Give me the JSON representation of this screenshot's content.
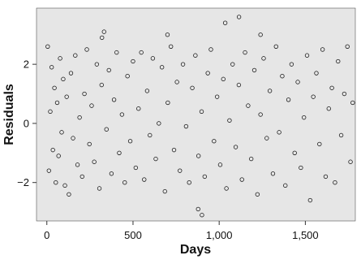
{
  "chart_data": {
    "type": "scatter",
    "title": "",
    "xlabel": "Days",
    "ylabel": "Residuals",
    "xlim": [
      -60,
      1790
    ],
    "ylim": [
      -3.3,
      3.9
    ],
    "xticks": [
      0,
      500,
      1000,
      1500
    ],
    "xtick_labels": [
      "0",
      "500",
      "1,000",
      "1,500"
    ],
    "yticks": [
      -2,
      0,
      2
    ],
    "ytick_labels": [
      "−2",
      "0",
      "2"
    ],
    "grid": false,
    "legend": "none",
    "colors": {
      "background": "#e6e6e6",
      "marker": "#111111"
    },
    "series": [
      {
        "x": [
          5,
          12,
          20,
          28,
          35,
          44,
          52,
          60,
          68,
          77,
          86,
          95,
          105,
          115,
          128,
          140,
          152,
          165,
          178,
          190,
          205,
          218,
          232,
          247,
          260,
          275,
          290,
          305,
          318,
          332,
          346,
          360,
          375,
          390,
          405,
          420,
          436,
          452,
          468,
          484,
          500,
          516,
          532,
          548,
          565,
          582,
          598,
          615,
          632,
          650,
          668,
          685,
          702,
          720,
          738,
          755,
          772,
          790,
          808,
          826,
          844,
          862,
          880,
          898,
          916,
          934,
          952,
          970,
          988,
          1006,
          1024,
          1042,
          1060,
          1078,
          1096,
          1114,
          1132,
          1150,
          1168,
          1186,
          1204,
          1222,
          1240,
          1258,
          1276,
          1294,
          1312,
          1330,
          1348,
          1366,
          1384,
          1402,
          1420,
          1438,
          1456,
          1474,
          1492,
          1510,
          1528,
          1546,
          1564,
          1582,
          1600,
          1618,
          1636,
          1654,
          1672,
          1690,
          1708,
          1726,
          1744,
          1762,
          1775,
          320,
          700,
          878,
          900,
          1035,
          1115,
          1240
        ],
        "y": [
          2.6,
          -1.6,
          0.4,
          1.9,
          -0.9,
          1.2,
          -2.0,
          0.7,
          -1.1,
          2.2,
          -0.3,
          1.5,
          -2.1,
          0.9,
          -2.4,
          1.7,
          -0.5,
          2.3,
          -1.4,
          0.2,
          -1.8,
          1.0,
          2.5,
          -0.7,
          0.6,
          -1.3,
          2.0,
          -2.2,
          1.3,
          3.1,
          -0.2,
          1.8,
          -1.7,
          0.8,
          2.4,
          -1.0,
          0.3,
          -2.0,
          1.6,
          -0.6,
          2.1,
          -1.5,
          0.5,
          2.4,
          -1.9,
          1.1,
          -0.4,
          2.2,
          -1.2,
          0.0,
          1.9,
          -2.3,
          0.7,
          2.6,
          -0.9,
          1.4,
          -1.6,
          2.0,
          -0.1,
          -2.0,
          1.2,
          2.3,
          -1.1,
          0.4,
          -1.8,
          1.7,
          2.5,
          -0.6,
          0.9,
          -1.4,
          1.5,
          -2.2,
          0.1,
          2.0,
          -0.8,
          1.3,
          -1.9,
          2.4,
          0.6,
          -1.2,
          1.8,
          -2.4,
          0.3,
          2.2,
          -0.5,
          1.1,
          -1.7,
          2.6,
          -0.3,
          1.6,
          -2.1,
          0.8,
          2.0,
          -1.0,
          1.4,
          -1.5,
          0.2,
          2.3,
          -2.6,
          0.9,
          1.7,
          -0.7,
          2.5,
          -1.8,
          0.5,
          1.2,
          -2.0,
          2.1,
          -0.4,
          1.0,
          2.6,
          -1.3,
          0.7,
          2.9,
          3.0,
          -2.9,
          -3.1,
          3.4,
          3.6,
          3.0
        ]
      }
    ]
  }
}
